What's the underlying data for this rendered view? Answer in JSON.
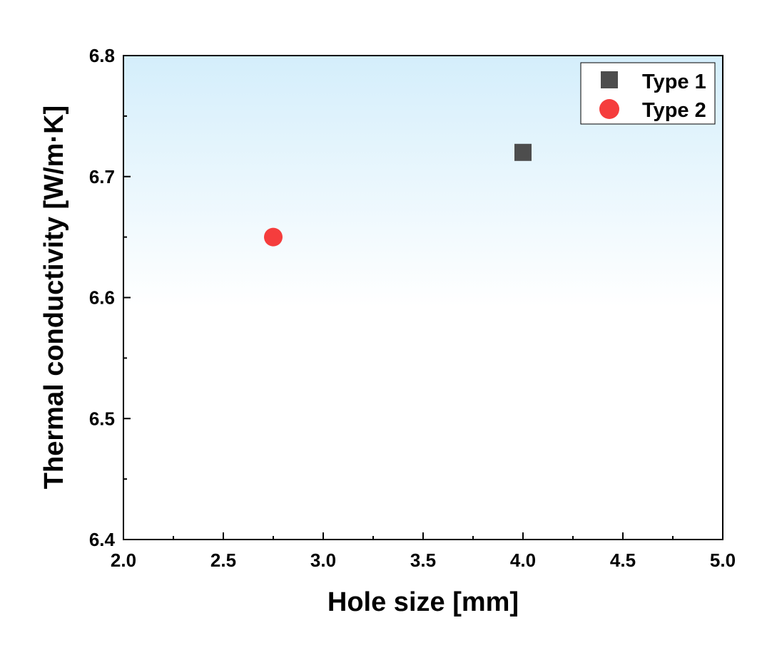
{
  "chart_data": {
    "type": "scatter",
    "title": "",
    "xlabel": "Hole size [mm]",
    "ylabel": "Thermal conductivity [W/m·K]",
    "xlim": [
      2.0,
      5.0
    ],
    "ylim": [
      6.4,
      6.8
    ],
    "xticks": [
      "2.0",
      "2.5",
      "3.0",
      "3.5",
      "4.0",
      "4.5",
      "5.0"
    ],
    "yticks": [
      "6.4",
      "6.5",
      "6.6",
      "6.7",
      "6.8"
    ],
    "grid": false,
    "legend_position": "top-right",
    "series": [
      {
        "name": "Type 1",
        "marker": "square",
        "color": "#4d4d4d",
        "points": [
          {
            "x": 4.0,
            "y": 6.72
          }
        ]
      },
      {
        "name": "Type 2",
        "marker": "circle",
        "color": "#f53d3d",
        "points": [
          {
            "x": 2.75,
            "y": 6.65
          }
        ]
      }
    ]
  }
}
